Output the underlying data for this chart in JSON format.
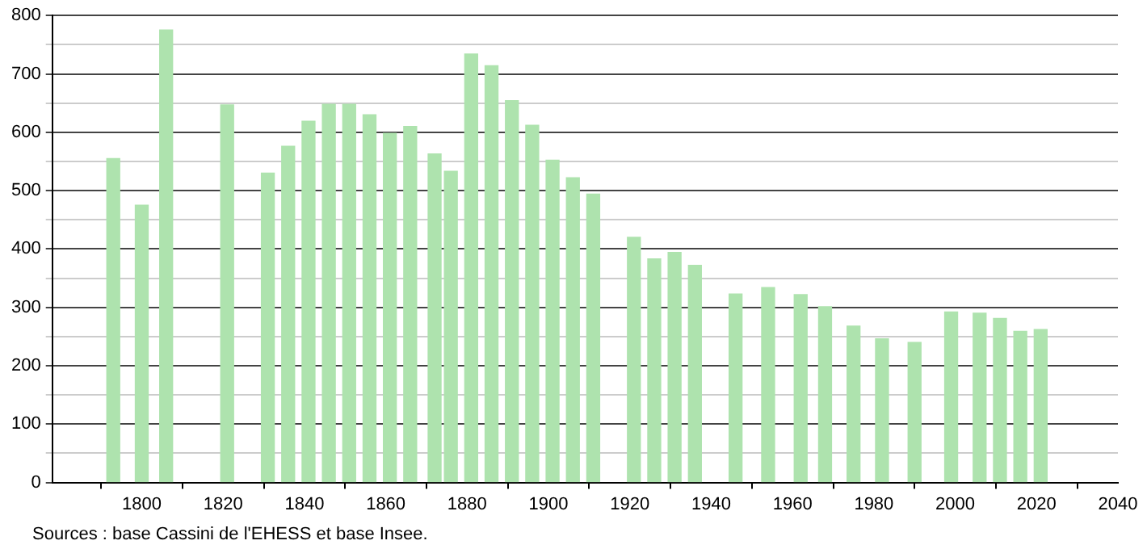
{
  "chart_data": {
    "type": "bar",
    "x": [
      1793,
      1800,
      1806,
      1821,
      1831,
      1836,
      1841,
      1846,
      1851,
      1856,
      1861,
      1866,
      1872,
      1876,
      1881,
      1886,
      1891,
      1896,
      1901,
      1906,
      1911,
      1921,
      1926,
      1931,
      1936,
      1946,
      1954,
      1962,
      1968,
      1975,
      1982,
      1990,
      1999,
      2006,
      2011,
      2016,
      2021
    ],
    "values": [
      555,
      475,
      775,
      647,
      530,
      576,
      619,
      648,
      648,
      630,
      598,
      610,
      563,
      533,
      734,
      714,
      654,
      612,
      552,
      522,
      494,
      420,
      383,
      394,
      372,
      323,
      334,
      322,
      301,
      268,
      246,
      240,
      292,
      290,
      281,
      259,
      262
    ],
    "color": "#aee3ae",
    "xlim": [
      1778,
      2040
    ],
    "xticks": [
      1800,
      1820,
      1840,
      1860,
      1880,
      1900,
      1920,
      1940,
      1960,
      1980,
      2000,
      2020,
      2040
    ],
    "ylim": [
      0,
      800
    ],
    "yticks": [
      0,
      {
        "value": 50,
        "label": null
      },
      100,
      {
        "value": 150,
        "label": null
      },
      200,
      {
        "value": 250,
        "label": null
      },
      300,
      {
        "value": 350,
        "label": null
      },
      400,
      {
        "value": 450,
        "label": null
      },
      500,
      {
        "value": 550,
        "label": null
      },
      600,
      {
        "value": 650,
        "label": null
      },
      700,
      {
        "value": 750,
        "label": null
      },
      800
    ],
    "grid": "y",
    "legend": false,
    "annotations": [
      "Sources : base Cassini de l'EHESS et base Insee."
    ]
  }
}
